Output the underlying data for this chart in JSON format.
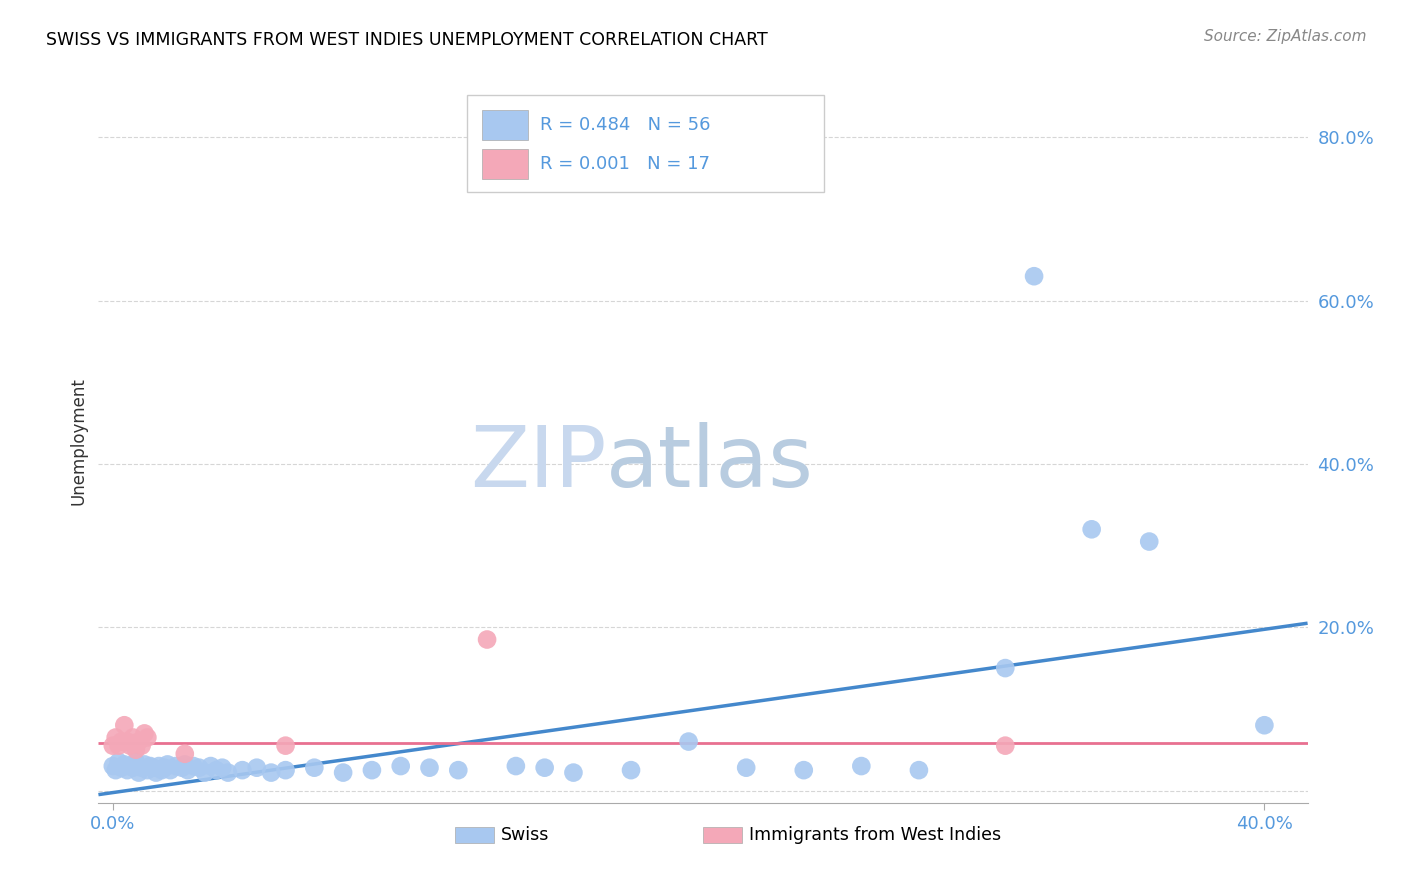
{
  "title": "SWISS VS IMMIGRANTS FROM WEST INDIES UNEMPLOYMENT CORRELATION CHART",
  "source": "Source: ZipAtlas.com",
  "ylabel": "Unemployment",
  "swiss_color": "#a8c8f0",
  "imm_color": "#f4a8b8",
  "trend_swiss_color": "#4488cc",
  "trend_imm_color": "#e87090",
  "watermark_zip_color": "#c8d8ee",
  "watermark_atlas_color": "#b8c8d8",
  "background_color": "#ffffff",
  "grid_color": "#cccccc",
  "legend_color": "#5599dd",
  "tick_color": "#5599dd",
  "xlim": [
    -0.005,
    0.415
  ],
  "ylim": [
    -0.015,
    0.87
  ],
  "yticks": [
    0.0,
    0.2,
    0.4,
    0.6,
    0.8
  ],
  "ytick_labels": [
    "",
    "20.0%",
    "40.0%",
    "60.0%",
    "80.0%"
  ],
  "xtick_positions": [
    0.0,
    0.4
  ],
  "xtick_labels": [
    "0.0%",
    "40.0%"
  ],
  "swiss_x": [
    0.0,
    0.001,
    0.002,
    0.003,
    0.004,
    0.005,
    0.006,
    0.007,
    0.008,
    0.009,
    0.01,
    0.011,
    0.012,
    0.013,
    0.014,
    0.015,
    0.016,
    0.017,
    0.018,
    0.019,
    0.02,
    0.022,
    0.024,
    0.025,
    0.026,
    0.028,
    0.03,
    0.032,
    0.034,
    0.036,
    0.038,
    0.04,
    0.045,
    0.05,
    0.055,
    0.06,
    0.07,
    0.08,
    0.09,
    0.1,
    0.11,
    0.12,
    0.14,
    0.15,
    0.16,
    0.18,
    0.2,
    0.22,
    0.24,
    0.26,
    0.28,
    0.31,
    0.32,
    0.34,
    0.36,
    0.4
  ],
  "swiss_y": [
    0.03,
    0.025,
    0.035,
    0.028,
    0.032,
    0.025,
    0.03,
    0.028,
    0.035,
    0.022,
    0.028,
    0.032,
    0.025,
    0.03,
    0.028,
    0.022,
    0.03,
    0.025,
    0.028,
    0.032,
    0.025,
    0.03,
    0.028,
    0.032,
    0.025,
    0.03,
    0.028,
    0.022,
    0.03,
    0.025,
    0.028,
    0.022,
    0.025,
    0.028,
    0.022,
    0.025,
    0.028,
    0.022,
    0.025,
    0.03,
    0.028,
    0.025,
    0.03,
    0.028,
    0.022,
    0.025,
    0.06,
    0.028,
    0.025,
    0.03,
    0.025,
    0.15,
    0.63,
    0.32,
    0.305,
    0.08
  ],
  "imm_x": [
    0.0,
    0.001,
    0.002,
    0.003,
    0.004,
    0.005,
    0.006,
    0.007,
    0.008,
    0.009,
    0.01,
    0.011,
    0.012,
    0.025,
    0.06,
    0.13,
    0.31
  ],
  "imm_y": [
    0.055,
    0.065,
    0.055,
    0.06,
    0.08,
    0.06,
    0.055,
    0.065,
    0.05,
    0.06,
    0.055,
    0.07,
    0.065,
    0.045,
    0.055,
    0.185,
    0.055
  ],
  "swiss_trend_x0": -0.005,
  "swiss_trend_x1": 0.415,
  "swiss_trend_y0": -0.005,
  "swiss_trend_y1": 0.205,
  "imm_trend_x0": -0.005,
  "imm_trend_x1": 0.415,
  "imm_trend_y0": 0.058,
  "imm_trend_y1": 0.058,
  "legend_swiss_text": "R = 0.484   N = 56",
  "legend_imm_text": "R = 0.001   N = 17"
}
